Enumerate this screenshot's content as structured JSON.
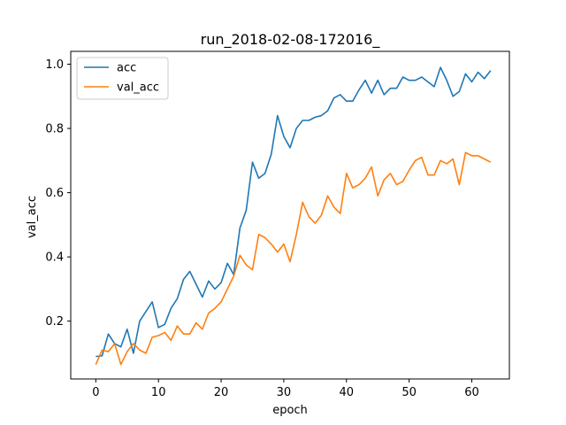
{
  "chart_data": {
    "type": "line",
    "title": "run_2018-02-08-172016_",
    "xlabel": "epoch",
    "ylabel": "val_acc",
    "xlim": [
      -4,
      66
    ],
    "ylim": [
      0.02,
      1.04
    ],
    "x_ticks": [
      0,
      10,
      20,
      30,
      40,
      50,
      60
    ],
    "y_ticks": [
      0.2,
      0.4,
      0.6,
      0.8,
      1.0
    ],
    "x_tick_labels": [
      "0",
      "10",
      "20",
      "30",
      "40",
      "50",
      "60"
    ],
    "y_tick_labels": [
      "0.2",
      "0.4",
      "0.6",
      "0.8",
      "1.0"
    ],
    "grid": false,
    "legend_position": "top-left",
    "series": [
      {
        "name": "acc",
        "color": "#1f77b4",
        "x": [
          0,
          1,
          2,
          3,
          4,
          5,
          6,
          7,
          8,
          9,
          10,
          11,
          12,
          13,
          14,
          15,
          16,
          17,
          18,
          19,
          20,
          21,
          22,
          23,
          24,
          25,
          26,
          27,
          28,
          29,
          30,
          31,
          32,
          33,
          34,
          35,
          36,
          37,
          38,
          39,
          40,
          41,
          42,
          43,
          44,
          45,
          46,
          47,
          48,
          49,
          50,
          51,
          52,
          53,
          54,
          55,
          56,
          57,
          58,
          59,
          60,
          61,
          62,
          63
        ],
        "values": [
          0.09,
          0.092,
          0.16,
          0.13,
          0.12,
          0.175,
          0.1,
          0.2,
          0.23,
          0.26,
          0.18,
          0.19,
          0.24,
          0.27,
          0.33,
          0.355,
          0.315,
          0.275,
          0.325,
          0.3,
          0.32,
          0.38,
          0.345,
          0.49,
          0.545,
          0.695,
          0.645,
          0.66,
          0.72,
          0.84,
          0.775,
          0.74,
          0.8,
          0.825,
          0.825,
          0.835,
          0.84,
          0.855,
          0.895,
          0.905,
          0.885,
          0.885,
          0.92,
          0.95,
          0.91,
          0.95,
          0.905,
          0.925,
          0.925,
          0.96,
          0.95,
          0.95,
          0.96,
          0.945,
          0.93,
          0.99,
          0.95,
          0.9,
          0.915,
          0.97,
          0.945,
          0.975,
          0.955,
          0.98
        ]
      },
      {
        "name": "val_acc",
        "color": "#ff7f0e",
        "x": [
          0,
          1,
          2,
          3,
          4,
          5,
          6,
          7,
          8,
          9,
          10,
          11,
          12,
          13,
          14,
          15,
          16,
          17,
          18,
          19,
          20,
          21,
          22,
          23,
          24,
          25,
          26,
          27,
          28,
          29,
          30,
          31,
          32,
          33,
          34,
          35,
          36,
          37,
          38,
          39,
          40,
          41,
          42,
          43,
          44,
          45,
          46,
          47,
          48,
          49,
          50,
          51,
          52,
          53,
          54,
          55,
          56,
          57,
          58,
          59,
          60,
          61,
          62,
          63
        ],
        "values": [
          0.065,
          0.11,
          0.105,
          0.13,
          0.065,
          0.105,
          0.13,
          0.11,
          0.1,
          0.15,
          0.155,
          0.165,
          0.14,
          0.185,
          0.16,
          0.16,
          0.195,
          0.175,
          0.225,
          0.24,
          0.26,
          0.3,
          0.34,
          0.405,
          0.375,
          0.36,
          0.47,
          0.46,
          0.44,
          0.415,
          0.44,
          0.385,
          0.47,
          0.57,
          0.525,
          0.505,
          0.53,
          0.59,
          0.555,
          0.535,
          0.66,
          0.615,
          0.625,
          0.645,
          0.68,
          0.59,
          0.64,
          0.66,
          0.625,
          0.635,
          0.67,
          0.7,
          0.71,
          0.655,
          0.655,
          0.7,
          0.69,
          0.705,
          0.625,
          0.725,
          0.715,
          0.715,
          0.705,
          0.695
        ]
      }
    ]
  }
}
